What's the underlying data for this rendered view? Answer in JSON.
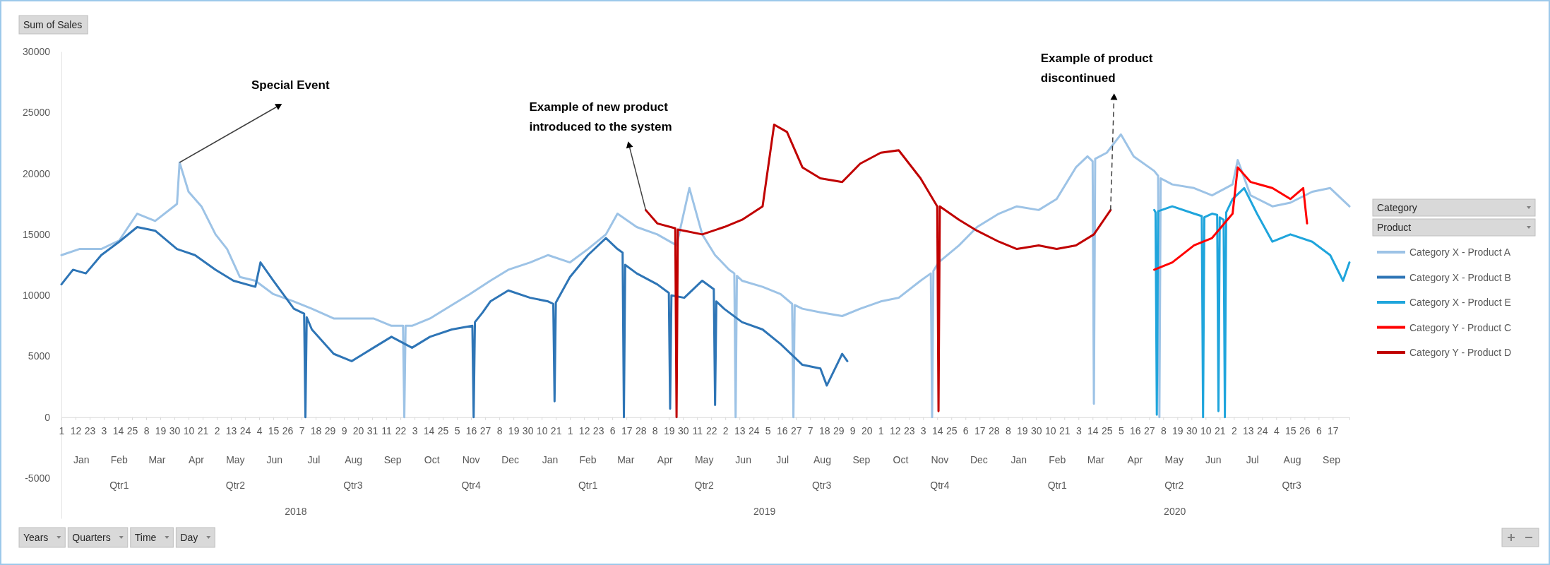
{
  "chart_data": {
    "type": "line",
    "ylabel": "Sum of Sales",
    "legend_title": "Category",
    "legend": "right",
    "xlim": [
      "2018-01-01",
      "2020-09-30"
    ],
    "ylim": [
      -8300,
      30000
    ],
    "yticks": [
      -5000,
      0,
      5000,
      10000,
      15000,
      20000,
      25000,
      30000
    ],
    "xticks": [
      {
        "value": "2018-01-01",
        "label": "1"
      },
      {
        "value": "2018-01-12",
        "label": "12"
      },
      {
        "value": "2018-01-23",
        "label": "23"
      },
      {
        "value": "2018-02-03",
        "label": "3"
      },
      {
        "value": "2018-02-14",
        "label": "14"
      },
      {
        "value": "2018-02-25",
        "label": "25"
      },
      {
        "value": "2018-03-08",
        "label": "8"
      },
      {
        "value": "2018-03-19",
        "label": "19"
      },
      {
        "value": "2018-03-30",
        "label": "30"
      },
      {
        "value": "2018-04-10",
        "label": "10"
      },
      {
        "value": "2018-04-21",
        "label": "21"
      },
      {
        "value": "2018-05-02",
        "label": "2"
      },
      {
        "value": "2018-05-13",
        "label": "13"
      },
      {
        "value": "2018-05-24",
        "label": "24"
      },
      {
        "value": "2018-06-04",
        "label": "4"
      },
      {
        "value": "2018-06-15",
        "label": "15"
      },
      {
        "value": "2018-06-26",
        "label": "26"
      },
      {
        "value": "2018-07-07",
        "label": "7"
      },
      {
        "value": "2018-07-18",
        "label": "18"
      },
      {
        "value": "2018-07-29",
        "label": "29"
      },
      {
        "value": "2018-08-09",
        "label": "9"
      },
      {
        "value": "2018-08-20",
        "label": "20"
      },
      {
        "value": "2018-08-31",
        "label": "31"
      },
      {
        "value": "2018-09-11",
        "label": "11"
      },
      {
        "value": "2018-09-22",
        "label": "22"
      },
      {
        "value": "2018-10-03",
        "label": "3"
      },
      {
        "value": "2018-10-14",
        "label": "14"
      },
      {
        "value": "2018-10-25",
        "label": "25"
      },
      {
        "value": "2018-11-05",
        "label": "5"
      },
      {
        "value": "2018-11-16",
        "label": "16"
      },
      {
        "value": "2018-11-27",
        "label": "27"
      },
      {
        "value": "2018-12-08",
        "label": "8"
      },
      {
        "value": "2018-12-19",
        "label": "19"
      },
      {
        "value": "2018-12-30",
        "label": "30"
      },
      {
        "value": "2019-01-10",
        "label": "10"
      },
      {
        "value": "2019-01-21",
        "label": "21"
      },
      {
        "value": "2019-02-01",
        "label": "1"
      },
      {
        "value": "2019-02-12",
        "label": "12"
      },
      {
        "value": "2019-02-23",
        "label": "23"
      },
      {
        "value": "2019-03-06",
        "label": "6"
      },
      {
        "value": "2019-03-17",
        "label": "17"
      },
      {
        "value": "2019-03-28",
        "label": "28"
      },
      {
        "value": "2019-04-08",
        "label": "8"
      },
      {
        "value": "2019-04-19",
        "label": "19"
      },
      {
        "value": "2019-04-30",
        "label": "30"
      },
      {
        "value": "2019-05-11",
        "label": "11"
      },
      {
        "value": "2019-05-22",
        "label": "22"
      },
      {
        "value": "2019-06-02",
        "label": "2"
      },
      {
        "value": "2019-06-13",
        "label": "13"
      },
      {
        "value": "2019-06-24",
        "label": "24"
      },
      {
        "value": "2019-07-05",
        "label": "5"
      },
      {
        "value": "2019-07-16",
        "label": "16"
      },
      {
        "value": "2019-07-27",
        "label": "27"
      },
      {
        "value": "2019-08-07",
        "label": "7"
      },
      {
        "value": "2019-08-18",
        "label": "18"
      },
      {
        "value": "2019-08-29",
        "label": "29"
      },
      {
        "value": "2019-09-09",
        "label": "9"
      },
      {
        "value": "2019-09-20",
        "label": "20"
      },
      {
        "value": "2019-10-01",
        "label": "1"
      },
      {
        "value": "2019-10-12",
        "label": "12"
      },
      {
        "value": "2019-10-23",
        "label": "23"
      },
      {
        "value": "2019-11-03",
        "label": "3"
      },
      {
        "value": "2019-11-14",
        "label": "14"
      },
      {
        "value": "2019-11-25",
        "label": "25"
      },
      {
        "value": "2019-12-06",
        "label": "6"
      },
      {
        "value": "2019-12-17",
        "label": "17"
      },
      {
        "value": "2019-12-28",
        "label": "28"
      },
      {
        "value": "2020-01-08",
        "label": "8"
      },
      {
        "value": "2020-01-19",
        "label": "19"
      },
      {
        "value": "2020-01-30",
        "label": "30"
      },
      {
        "value": "2020-02-10",
        "label": "10"
      },
      {
        "value": "2020-02-21",
        "label": "21"
      },
      {
        "value": "2020-03-03",
        "label": "3"
      },
      {
        "value": "2020-03-14",
        "label": "14"
      },
      {
        "value": "2020-03-25",
        "label": "25"
      },
      {
        "value": "2020-04-05",
        "label": "5"
      },
      {
        "value": "2020-04-16",
        "label": "16"
      },
      {
        "value": "2020-04-27",
        "label": "27"
      },
      {
        "value": "2020-05-08",
        "label": "8"
      },
      {
        "value": "2020-05-19",
        "label": "19"
      },
      {
        "value": "2020-05-30",
        "label": "30"
      },
      {
        "value": "2020-06-10",
        "label": "10"
      },
      {
        "value": "2020-06-21",
        "label": "21"
      },
      {
        "value": "2020-07-02",
        "label": "2"
      },
      {
        "value": "2020-07-13",
        "label": "13"
      },
      {
        "value": "2020-07-24",
        "label": "24"
      },
      {
        "value": "2020-08-04",
        "label": "4"
      },
      {
        "value": "2020-08-15",
        "label": "15"
      },
      {
        "value": "2020-08-26",
        "label": "26"
      },
      {
        "value": "2020-09-06",
        "label": "6"
      },
      {
        "value": "2020-09-17",
        "label": "17"
      }
    ],
    "series": [
      {
        "name": "Category X - Product A",
        "color": "#9dc3e6",
        "x": [
          "2018-01-01",
          "2018-01-15",
          "2018-02-01",
          "2018-02-15",
          "2018-03-01",
          "2018-03-15",
          "2018-04-01",
          "2018-04-03",
          "2018-04-10",
          "2018-04-20",
          "2018-05-01",
          "2018-05-10",
          "2018-05-20",
          "2018-06-01",
          "2018-06-15",
          "2018-07-01",
          "2018-07-15",
          "2018-08-01",
          "2018-08-15",
          "2018-09-01",
          "2018-09-15",
          "2018-09-24",
          "2018-09-25",
          "2018-09-26",
          "2018-10-01",
          "2018-10-15",
          "2018-11-01",
          "2018-11-15",
          "2018-12-01",
          "2018-12-15",
          "2019-01-01",
          "2019-01-15",
          "2019-02-01",
          "2019-02-15",
          "2019-03-01",
          "2019-03-10",
          "2019-03-25",
          "2019-04-10",
          "2019-04-25",
          "2019-05-05",
          "2019-05-15",
          "2019-05-25",
          "2019-06-05",
          "2019-06-09",
          "2019-06-10",
          "2019-06-11",
          "2019-06-15",
          "2019-07-01",
          "2019-07-15",
          "2019-07-24",
          "2019-07-25",
          "2019-07-26",
          "2019-08-01",
          "2019-08-15",
          "2019-09-01",
          "2019-09-15",
          "2019-10-01",
          "2019-10-15",
          "2019-11-01",
          "2019-11-09",
          "2019-11-10",
          "2019-11-11",
          "2019-11-15",
          "2019-12-01",
          "2019-12-15",
          "2020-01-01",
          "2020-01-15",
          "2020-02-01",
          "2020-02-15",
          "2020-03-01",
          "2020-03-10",
          "2020-03-14",
          "2020-03-15",
          "2020-03-16",
          "2020-03-25",
          "2020-04-05",
          "2020-04-15",
          "2020-05-01",
          "2020-05-04",
          "2020-05-05",
          "2020-05-06",
          "2020-05-15",
          "2020-06-01",
          "2020-06-15",
          "2020-07-01",
          "2020-07-05",
          "2020-07-15",
          "2020-08-01",
          "2020-08-15",
          "2020-09-01",
          "2020-09-15",
          "2020-09-30"
        ],
        "values": [
          13300,
          13800,
          13800,
          14500,
          16700,
          16100,
          17500,
          20900,
          18500,
          17300,
          15000,
          13800,
          11500,
          11200,
          10100,
          9500,
          8900,
          8100,
          8100,
          8100,
          7500,
          7500,
          0,
          7500,
          7500,
          8100,
          9200,
          10100,
          11200,
          12100,
          12700,
          13300,
          12700,
          13800,
          15000,
          16700,
          15600,
          15000,
          14100,
          18800,
          15000,
          13300,
          12100,
          11800,
          0,
          11600,
          11200,
          10700,
          10100,
          9300,
          0,
          9200,
          8900,
          8600,
          8300,
          8900,
          9500,
          9800,
          11200,
          11800,
          0,
          12000,
          12700,
          14100,
          15600,
          16700,
          17300,
          17000,
          17900,
          20500,
          21400,
          21000,
          1100,
          21200,
          21700,
          23200,
          21400,
          20200,
          19800,
          0,
          19600,
          19100,
          18800,
          18200,
          19100,
          21100,
          18200,
          17300,
          17600,
          18500,
          18800,
          17300
        ]
      },
      {
        "name": "Category X - Product B",
        "color": "#2e75b6",
        "x": [
          "2018-01-01",
          "2018-01-10",
          "2018-01-20",
          "2018-02-01",
          "2018-02-15",
          "2018-03-01",
          "2018-03-15",
          "2018-04-01",
          "2018-04-15",
          "2018-05-01",
          "2018-05-15",
          "2018-06-01",
          "2018-06-05",
          "2018-06-15",
          "2018-07-01",
          "2018-07-09",
          "2018-07-10",
          "2018-07-11",
          "2018-07-15",
          "2018-08-01",
          "2018-08-15",
          "2018-09-01",
          "2018-09-15",
          "2018-10-01",
          "2018-10-15",
          "2018-11-01",
          "2018-11-17",
          "2018-11-18",
          "2018-11-19",
          "2018-11-25",
          "2018-12-01",
          "2018-12-15",
          "2019-01-01",
          "2019-01-15",
          "2019-01-19",
          "2019-01-20",
          "2019-01-21",
          "2019-02-01",
          "2019-02-15",
          "2019-03-01",
          "2019-03-10",
          "2019-03-14",
          "2019-03-15",
          "2019-03-16",
          "2019-03-25",
          "2019-04-10",
          "2019-04-19",
          "2019-04-20",
          "2019-04-21",
          "2019-05-01",
          "2019-05-15",
          "2019-05-24",
          "2019-05-25",
          "2019-05-26",
          "2019-06-01",
          "2019-06-15",
          "2019-07-01",
          "2019-07-15",
          "2019-08-01",
          "2019-08-15",
          "2019-08-20",
          "2019-09-01",
          "2019-09-05"
        ],
        "values": [
          10900,
          12100,
          11800,
          13300,
          14400,
          15600,
          15300,
          13800,
          13300,
          12100,
          11200,
          10700,
          12700,
          11200,
          8900,
          8500,
          0,
          8200,
          7200,
          5200,
          4600,
          5700,
          6600,
          5700,
          6600,
          7200,
          7500,
          0,
          7800,
          8600,
          9500,
          10400,
          9800,
          9500,
          9300,
          1300,
          9400,
          11500,
          13300,
          14700,
          13800,
          13500,
          0,
          12500,
          11800,
          10900,
          10200,
          700,
          10000,
          9800,
          11200,
          10500,
          1000,
          9500,
          8900,
          7800,
          7200,
          6000,
          4300,
          4000,
          2600,
          5200,
          4600
        ]
      },
      {
        "name": "Category X - Product E",
        "color": "#1fa5dc",
        "x": [
          "2020-05-01",
          "2020-05-02",
          "2020-05-03",
          "2020-05-04",
          "2020-05-15",
          "2020-06-01",
          "2020-06-07",
          "2020-06-08",
          "2020-06-09",
          "2020-06-15",
          "2020-06-19",
          "2020-06-20",
          "2020-06-21",
          "2020-06-24",
          "2020-06-25",
          "2020-06-26",
          "2020-07-01",
          "2020-07-10",
          "2020-07-20",
          "2020-08-01",
          "2020-08-15",
          "2020-09-01",
          "2020-09-15",
          "2020-09-25",
          "2020-09-30"
        ],
        "values": [
          17000,
          16800,
          200,
          16900,
          17300,
          16700,
          16500,
          0,
          16400,
          16700,
          16600,
          500,
          16400,
          16200,
          0,
          16800,
          17900,
          18800,
          16700,
          14400,
          15000,
          14400,
          13300,
          11200,
          12700
        ]
      },
      {
        "name": "Category Y - Product C",
        "color": "#ff0000",
        "x": [
          "2020-05-01",
          "2020-05-15",
          "2020-06-01",
          "2020-06-15",
          "2020-07-01",
          "2020-07-05",
          "2020-07-15",
          "2020-08-01",
          "2020-08-15",
          "2020-08-25",
          "2020-08-28"
        ],
        "values": [
          12100,
          12700,
          14100,
          14700,
          16700,
          20500,
          19300,
          18800,
          17900,
          18800,
          15900
        ]
      },
      {
        "name": "Category Y - Product D",
        "color": "#c00000",
        "x": [
          "2019-04-01",
          "2019-04-10",
          "2019-04-24",
          "2019-04-25",
          "2019-04-26",
          "2019-05-01",
          "2019-05-15",
          "2019-06-01",
          "2019-06-15",
          "2019-07-01",
          "2019-07-10",
          "2019-07-20",
          "2019-08-01",
          "2019-08-15",
          "2019-09-01",
          "2019-09-15",
          "2019-10-01",
          "2019-10-15",
          "2019-11-01",
          "2019-11-14",
          "2019-11-15",
          "2019-11-16",
          "2019-12-01",
          "2019-12-15",
          "2020-01-01",
          "2020-01-15",
          "2020-02-01",
          "2020-02-15",
          "2020-03-01",
          "2020-03-15",
          "2020-03-28"
        ],
        "values": [
          17000,
          15900,
          15500,
          0,
          15400,
          15300,
          15000,
          15600,
          16200,
          17300,
          24000,
          23400,
          20500,
          19600,
          19300,
          20800,
          21700,
          21900,
          19600,
          17300,
          500,
          17300,
          16200,
          15300,
          14400,
          13800,
          14100,
          13800,
          14100,
          15000,
          17000
        ]
      }
    ],
    "annotations": [
      {
        "text": "Special Event",
        "x": "2018-04-03",
        "y": 20900
      },
      {
        "text": "Example of new product\nintroduced to the system",
        "x": "2019-04-01",
        "y": 17000
      },
      {
        "text": "Example of product\ndiscontinued",
        "x": "2020-03-28",
        "y": 17000
      },
      "Product",
      "Years",
      "Quarters",
      "Time",
      "Day",
      "Jan",
      "Feb",
      "Mar",
      "Apr",
      "May",
      "Jun",
      "Jul",
      "Aug",
      "Sep",
      "Oct",
      "Nov",
      "Dec",
      "Jan",
      "Feb",
      "Mar",
      "Apr",
      "May",
      "Jun",
      "Jul",
      "Aug",
      "Sep",
      "Oct",
      "Nov",
      "Dec",
      "Jan",
      "Feb",
      "Mar",
      "Apr",
      "May",
      "Jun",
      "Jul",
      "Aug",
      "Sep",
      "Qtr1",
      "Qtr2",
      "Qtr3",
      "Qtr4",
      "Qtr1",
      "Qtr2",
      "Qtr3",
      "Qtr4",
      "Qtr1",
      "Qtr2",
      "Qtr3",
      "2018",
      "2019",
      "2020"
    ]
  }
}
